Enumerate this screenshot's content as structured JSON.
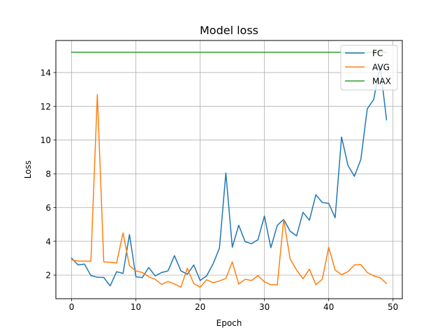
{
  "chart_data": {
    "type": "line",
    "title": "Model loss",
    "xlabel": "Epoch",
    "ylabel": "Loss",
    "xlim": [
      -2.45,
      51.45
    ],
    "ylim": [
      0.6,
      15.9
    ],
    "xticks": [
      0,
      10,
      20,
      30,
      40,
      50
    ],
    "yticks": [
      2,
      4,
      6,
      8,
      10,
      12,
      14
    ],
    "grid": true,
    "legend_position": "top-right",
    "x": [
      0,
      1,
      2,
      3,
      4,
      5,
      6,
      7,
      8,
      9,
      10,
      11,
      12,
      13,
      14,
      15,
      16,
      17,
      18,
      19,
      20,
      21,
      22,
      23,
      24,
      25,
      26,
      27,
      28,
      29,
      30,
      31,
      32,
      33,
      34,
      35,
      36,
      37,
      38,
      39,
      40,
      41,
      42,
      43,
      44,
      45,
      46,
      47,
      48,
      49
    ],
    "series": [
      {
        "name": "FC",
        "color": "#1f77b4",
        "values": [
          3.0,
          2.6,
          2.65,
          1.97,
          1.87,
          1.86,
          1.36,
          2.2,
          2.1,
          4.4,
          1.9,
          1.85,
          2.45,
          1.95,
          2.15,
          2.25,
          3.15,
          2.25,
          2.05,
          2.6,
          1.68,
          1.95,
          2.65,
          3.6,
          8.05,
          3.65,
          4.95,
          3.98,
          3.86,
          4.1,
          5.5,
          3.62,
          4.95,
          5.3,
          4.6,
          4.32,
          5.72,
          5.25,
          6.76,
          6.3,
          6.25,
          5.4,
          10.18,
          8.5,
          7.85,
          8.85,
          11.85,
          12.4,
          14.4,
          11.2
        ]
      },
      {
        "name": "AVG",
        "color": "#ff7f0e",
        "values": [
          2.9,
          2.83,
          2.83,
          2.82,
          12.7,
          2.78,
          2.76,
          2.72,
          4.5,
          2.55,
          2.25,
          2.15,
          1.9,
          1.75,
          1.45,
          1.62,
          1.47,
          1.28,
          2.4,
          1.5,
          1.28,
          1.72,
          1.55,
          1.65,
          1.8,
          2.78,
          1.47,
          1.75,
          1.68,
          1.97,
          1.6,
          1.43,
          1.42,
          5.3,
          2.95,
          2.3,
          1.78,
          2.35,
          1.43,
          1.75,
          3.65,
          2.3,
          2.02,
          2.2,
          2.6,
          2.62,
          2.15,
          1.95,
          1.85,
          1.5
        ]
      },
      {
        "name": "MAX",
        "color": "#2ca02c",
        "values": [
          15.2,
          15.2,
          15.2,
          15.2,
          15.2,
          15.2,
          15.2,
          15.2,
          15.2,
          15.2,
          15.2,
          15.2,
          15.2,
          15.2,
          15.2,
          15.2,
          15.2,
          15.2,
          15.2,
          15.2,
          15.2,
          15.2,
          15.2,
          15.2,
          15.2,
          15.2,
          15.2,
          15.2,
          15.2,
          15.2,
          15.2,
          15.2,
          15.2,
          15.2,
          15.2,
          15.2,
          15.2,
          15.2,
          15.2,
          15.2,
          15.2,
          15.2,
          15.2,
          15.2,
          15.2,
          15.2,
          15.2,
          15.2,
          15.2,
          15.2
        ]
      }
    ]
  }
}
